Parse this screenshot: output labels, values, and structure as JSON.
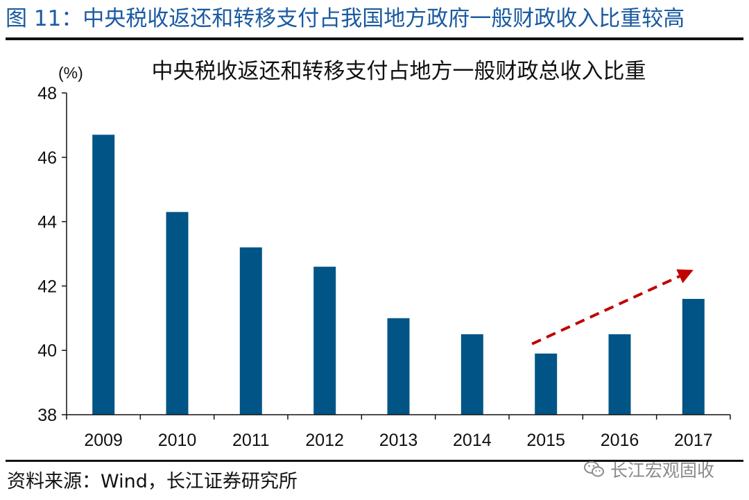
{
  "figure_title": "图 11：中央税收返还和转移支付占我国地方政府一般财政收入比重较高",
  "source": "资料来源：Wind，长江证券研究所",
  "watermark": {
    "text": "长江宏观固收",
    "icon": "wechat-icon"
  },
  "colors": {
    "bar": "#005586",
    "title": "#1a5aa0",
    "arrow": "#c00000"
  },
  "chart_data": {
    "type": "bar",
    "title": "中央税收返还和转移支付占地方一般财政总收入比重",
    "ylabel": "(%)",
    "xlabel": "",
    "categories": [
      "2009",
      "2010",
      "2011",
      "2012",
      "2013",
      "2014",
      "2015",
      "2016",
      "2017"
    ],
    "values": [
      46.7,
      44.3,
      43.2,
      42.6,
      41.0,
      40.5,
      39.9,
      40.5,
      41.6
    ],
    "ylim": [
      38,
      48
    ],
    "yticks": [
      38,
      40,
      42,
      44,
      46,
      48
    ],
    "grid": false,
    "legend": "none",
    "annotations": [
      {
        "type": "dashed-arrow",
        "from": {
          "category": "2015",
          "value": 40.2
        },
        "to": {
          "category": "2017",
          "value": 42.5
        },
        "color": "#c00000"
      }
    ]
  }
}
